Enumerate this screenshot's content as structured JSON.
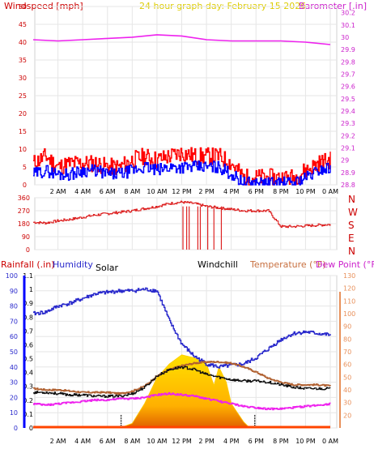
{
  "header": {
    "left_label": "Windspeed [mph]",
    "center_label": "24 hour graph day: February 15 2026",
    "right_label": "Barometer [.in]"
  },
  "colors": {
    "wind_gust": "#ff0000",
    "wind_avg": "#0000ff",
    "barometer": "#ee22ee",
    "direction": "#dd2222",
    "humidity": "#2a2acc",
    "temperature": "#b06030",
    "dewpoint": "#ee22ee",
    "windchill": "#111111",
    "solar": "#ffcc00",
    "rainfall": "#0000ff",
    "right_axis_lower": "#e8905a",
    "header_center": "#ddcc00",
    "header_left": "#cc0000",
    "header_right": "#cc22cc"
  },
  "chart_data": [
    {
      "type": "line",
      "name_ref": "wind-barometer-panel",
      "x_ticks": [
        "2 AM",
        "4 AM",
        "6 AM",
        "8 AM",
        "10 AM",
        "12 PM",
        "2 PM",
        "4 PM",
        "6 PM",
        "8 PM",
        "10 PM",
        "0 AM"
      ],
      "x_range_hours": [
        0,
        24
      ],
      "left_axis": {
        "ylim": [
          0,
          50
        ],
        "ticks": [
          0,
          5,
          10,
          15,
          20,
          25,
          30,
          35,
          40,
          45,
          50
        ]
      },
      "right_axis": {
        "ylim": [
          28.8,
          30.25
        ],
        "ticks": [
          "28.8",
          "28.9",
          "29",
          "29.1",
          "29.2",
          "29.3",
          "29.4",
          "29.5",
          "29.6",
          "29.7",
          "29.8",
          "29.9",
          "30",
          "30.1",
          "30.2"
        ]
      },
      "series": [
        {
          "key": "gust",
          "hours": [
            0,
            1,
            2,
            3,
            4,
            5,
            6,
            7,
            8,
            9,
            10,
            11,
            12,
            13,
            14,
            15,
            16,
            17,
            18,
            19,
            20,
            21,
            22,
            23,
            24
          ],
          "values": [
            6,
            8,
            5,
            6,
            6,
            6,
            5,
            5,
            7,
            8,
            7,
            8,
            9,
            8,
            8,
            8,
            6,
            2,
            2,
            2,
            2,
            2,
            4,
            6,
            7
          ]
        },
        {
          "key": "average",
          "hours": [
            0,
            1,
            2,
            3,
            4,
            5,
            6,
            7,
            8,
            9,
            10,
            11,
            12,
            13,
            14,
            15,
            16,
            17,
            18,
            19,
            20,
            21,
            22,
            23,
            24
          ],
          "values": [
            3,
            4,
            3,
            3,
            4,
            4,
            3,
            3,
            4,
            5,
            4,
            5,
            5,
            5,
            5,
            5,
            3,
            0.5,
            0.5,
            0.5,
            0.5,
            0.5,
            2,
            4,
            5
          ]
        },
        {
          "key": "barometer",
          "hours": [
            0,
            2,
            4,
            6,
            8,
            10,
            12,
            14,
            16,
            18,
            20,
            22,
            24
          ],
          "values": [
            29.98,
            29.97,
            29.98,
            29.99,
            30.0,
            30.02,
            30.01,
            29.98,
            29.97,
            29.97,
            29.97,
            29.96,
            29.94
          ]
        }
      ]
    },
    {
      "type": "line",
      "name_ref": "wind-direction-panel",
      "x_range_hours": [
        0,
        24
      ],
      "left_axis": {
        "ylim": [
          0,
          360
        ],
        "ticks": [
          0,
          90,
          180,
          270,
          360
        ]
      },
      "right_labels": [
        "N",
        "W",
        "S",
        "E",
        "N"
      ],
      "series": [
        {
          "key": "direction",
          "hours": [
            0,
            1,
            2,
            3,
            4,
            5,
            6,
            7,
            8,
            9,
            10,
            11,
            12,
            13,
            14,
            15,
            16,
            17,
            18,
            19,
            20,
            21,
            22,
            23,
            24
          ],
          "values": [
            190,
            185,
            200,
            210,
            225,
            240,
            250,
            260,
            270,
            285,
            300,
            320,
            330,
            320,
            300,
            290,
            280,
            270,
            270,
            270,
            160,
            160,
            165,
            170,
            175
          ]
        },
        {
          "key": "direction_drops_north",
          "hours": [
            12.1,
            12.4,
            12.6,
            13.3,
            13.5,
            14.1,
            14.6,
            15.2
          ],
          "values": [
            0,
            0,
            0,
            0,
            0,
            0,
            0,
            0
          ]
        }
      ]
    },
    {
      "type": "line",
      "name_ref": "weather-panel",
      "legend": [
        "Rainfall (.in)",
        "Humidity",
        "Solar",
        "Windchill",
        "Temperature (°F)",
        "Dew Point (°F)"
      ],
      "x_ticks": [
        "2 AM",
        "4 AM",
        "6 AM",
        "8 AM",
        "10 AM",
        "12 PM",
        "2 PM",
        "4 PM",
        "6 PM",
        "8 PM",
        "10 PM",
        "0 AM"
      ],
      "x_range_hours": [
        0,
        24
      ],
      "left_axis_humidity": {
        "ylim": [
          0,
          100
        ],
        "ticks": [
          0,
          10,
          20,
          30,
          40,
          50,
          60,
          70,
          80,
          90,
          100
        ]
      },
      "left_axis_rain": {
        "ylim": [
          0,
          1.1
        ],
        "ticks": [
          "0",
          "0.1",
          "0.2",
          "0.3",
          "0.4",
          "0.5",
          "0.6",
          "0.7",
          "0.8",
          "0.9",
          "1",
          "1.1"
        ]
      },
      "right_axis_temperature": {
        "ylim": [
          10,
          130
        ],
        "ticks": [
          20,
          30,
          40,
          50,
          60,
          70,
          80,
          90,
          100,
          110,
          120,
          130
        ]
      },
      "series": [
        {
          "key": "humidity",
          "hours": [
            0,
            1,
            2,
            3,
            4,
            5,
            6,
            7,
            8,
            9,
            10,
            11,
            12,
            13,
            14,
            15,
            16,
            17,
            18,
            19,
            20,
            21,
            22,
            23,
            24
          ],
          "values": [
            75,
            76,
            80,
            82,
            85,
            88,
            89,
            90,
            90,
            91,
            90,
            70,
            55,
            47,
            42,
            40,
            41,
            42,
            46,
            52,
            58,
            62,
            63,
            62,
            61
          ]
        },
        {
          "key": "temperature",
          "hours": [
            0,
            1,
            2,
            3,
            4,
            5,
            6,
            7,
            8,
            9,
            10,
            11,
            12,
            13,
            14,
            15,
            16,
            17,
            18,
            19,
            20,
            21,
            22,
            23,
            24
          ],
          "values": [
            41,
            40,
            40,
            39,
            38,
            38,
            38,
            37,
            39,
            43,
            51,
            56,
            59,
            61,
            62,
            62,
            61,
            58,
            54,
            49,
            46,
            44,
            44,
            44,
            43
          ]
        },
        {
          "key": "windchill",
          "hours": [
            0,
            1,
            2,
            3,
            4,
            5,
            6,
            7,
            8,
            9,
            10,
            11,
            12,
            13,
            14,
            15,
            16,
            17,
            18,
            19,
            20,
            21,
            22,
            23,
            24
          ],
          "values": [
            38,
            38,
            37,
            36,
            36,
            35,
            35,
            35,
            37,
            42,
            51,
            56,
            58,
            56,
            52,
            50,
            48,
            47,
            47,
            46,
            44,
            42,
            41,
            41,
            41
          ]
        },
        {
          "key": "dewpoint",
          "hours": [
            0,
            1,
            2,
            3,
            4,
            5,
            6,
            7,
            8,
            9,
            10,
            11,
            12,
            13,
            14,
            15,
            16,
            17,
            18,
            19,
            20,
            21,
            22,
            23,
            24
          ],
          "values": [
            29,
            28,
            29,
            30,
            31,
            32,
            32,
            33,
            33,
            34,
            36,
            37,
            36,
            35,
            33,
            31,
            29,
            27,
            26,
            25,
            25,
            26,
            27,
            28,
            29
          ]
        },
        {
          "key": "solar",
          "hours": [
            7.0,
            8.0,
            9.0,
            10.0,
            11.0,
            12.0,
            13.0,
            14.0,
            14.6,
            15.0,
            15.6,
            16.0,
            16.5,
            17.0,
            17.5
          ],
          "values": [
            0,
            3,
            16,
            33,
            42,
            48,
            46,
            42,
            28,
            40,
            30,
            16,
            10,
            4,
            0
          ]
        },
        {
          "key": "rainfall",
          "hours": [
            0,
            24
          ],
          "values": [
            0,
            0
          ]
        }
      ],
      "markers_hours": [
        7.1,
        17.9
      ]
    }
  ]
}
